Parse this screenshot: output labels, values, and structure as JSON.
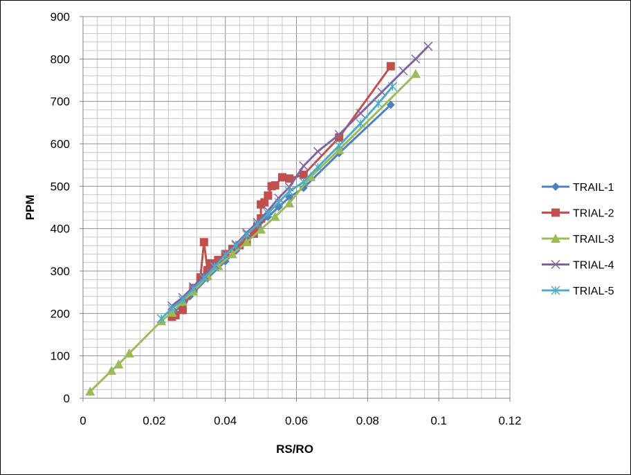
{
  "chart_data": {
    "type": "line",
    "title": "",
    "xlabel": "RS/RO",
    "ylabel": "PPM",
    "xlim": [
      0,
      0.12
    ],
    "ylim": [
      0,
      900
    ],
    "x_ticks": [
      0,
      0.02,
      0.04,
      0.06,
      0.08,
      0.1,
      0.12
    ],
    "x_tick_labels": [
      "0",
      "0.02",
      "0.04",
      "0.06",
      "0.08",
      "0.1",
      "0.12"
    ],
    "y_ticks": [
      0,
      100,
      200,
      300,
      400,
      500,
      600,
      700,
      800,
      900
    ],
    "y_tick_labels": [
      "0",
      "100",
      "200",
      "300",
      "400",
      "500",
      "600",
      "700",
      "800",
      "900"
    ],
    "grid": true,
    "legend_position": "right",
    "series": [
      {
        "name": "TRAIL-1",
        "color": "#4F81BD",
        "marker": "diamond",
        "x": [
          0.025,
          0.03,
          0.035,
          0.04,
          0.043,
          0.046,
          0.049,
          0.052,
          0.055,
          0.058,
          0.062,
          0.072,
          0.0865
        ],
        "y": [
          197,
          240,
          283,
          323,
          348,
          374,
          402,
          428,
          451,
          474,
          496,
          578,
          692
        ]
      },
      {
        "name": "TRIAL-2",
        "color": "#C0504D",
        "marker": "square",
        "x": [
          0.025,
          0.026,
          0.028,
          0.031,
          0.033,
          0.034,
          0.035,
          0.036,
          0.038,
          0.04,
          0.042,
          0.044,
          0.046,
          0.048,
          0.049,
          0.05,
          0.05,
          0.051,
          0.052,
          0.053,
          0.054,
          0.056,
          0.058,
          0.062,
          0.072,
          0.0865
        ],
        "y": [
          192,
          196,
          208,
          260,
          285,
          368,
          302,
          318,
          326,
          340,
          352,
          361,
          369,
          388,
          405,
          424,
          457,
          462,
          478,
          500,
          502,
          521,
          518,
          527,
          615,
          783
        ]
      },
      {
        "name": "TRAIL-3",
        "color": "#9BBB59",
        "marker": "triangle",
        "x": [
          0.002,
          0.008,
          0.01,
          0.013,
          0.022,
          0.025,
          0.028,
          0.031,
          0.035,
          0.038,
          0.042,
          0.046,
          0.05,
          0.054,
          0.058,
          0.064,
          0.072,
          0.0935
        ],
        "y": [
          16,
          65,
          80,
          106,
          182,
          202,
          228,
          252,
          288,
          312,
          340,
          368,
          398,
          428,
          460,
          522,
          586,
          765
        ]
      },
      {
        "name": "TRIAL-4",
        "color": "#8064A2",
        "marker": "x",
        "x": [
          0.025,
          0.028,
          0.031,
          0.034,
          0.037,
          0.04,
          0.043,
          0.046,
          0.049,
          0.052,
          0.055,
          0.058,
          0.062,
          0.066,
          0.072,
          0.078,
          0.084,
          0.09,
          0.0935,
          0.097
        ],
        "y": [
          218,
          238,
          263,
          290,
          315,
          338,
          363,
          390,
          415,
          442,
          472,
          498,
          548,
          582,
          622,
          672,
          722,
          772,
          800,
          830
        ]
      },
      {
        "name": "TRIAL-5",
        "color": "#4BACC6",
        "marker": "star",
        "x": [
          0.022,
          0.025,
          0.028,
          0.031,
          0.034,
          0.037,
          0.04,
          0.043,
          0.046,
          0.049,
          0.052,
          0.055,
          0.058,
          0.062,
          0.066,
          0.072,
          0.078,
          0.083,
          0.087
        ],
        "y": [
          188,
          212,
          232,
          258,
          283,
          310,
          338,
          360,
          386,
          410,
          436,
          462,
          488,
          510,
          545,
          596,
          648,
          695,
          735
        ]
      }
    ]
  }
}
